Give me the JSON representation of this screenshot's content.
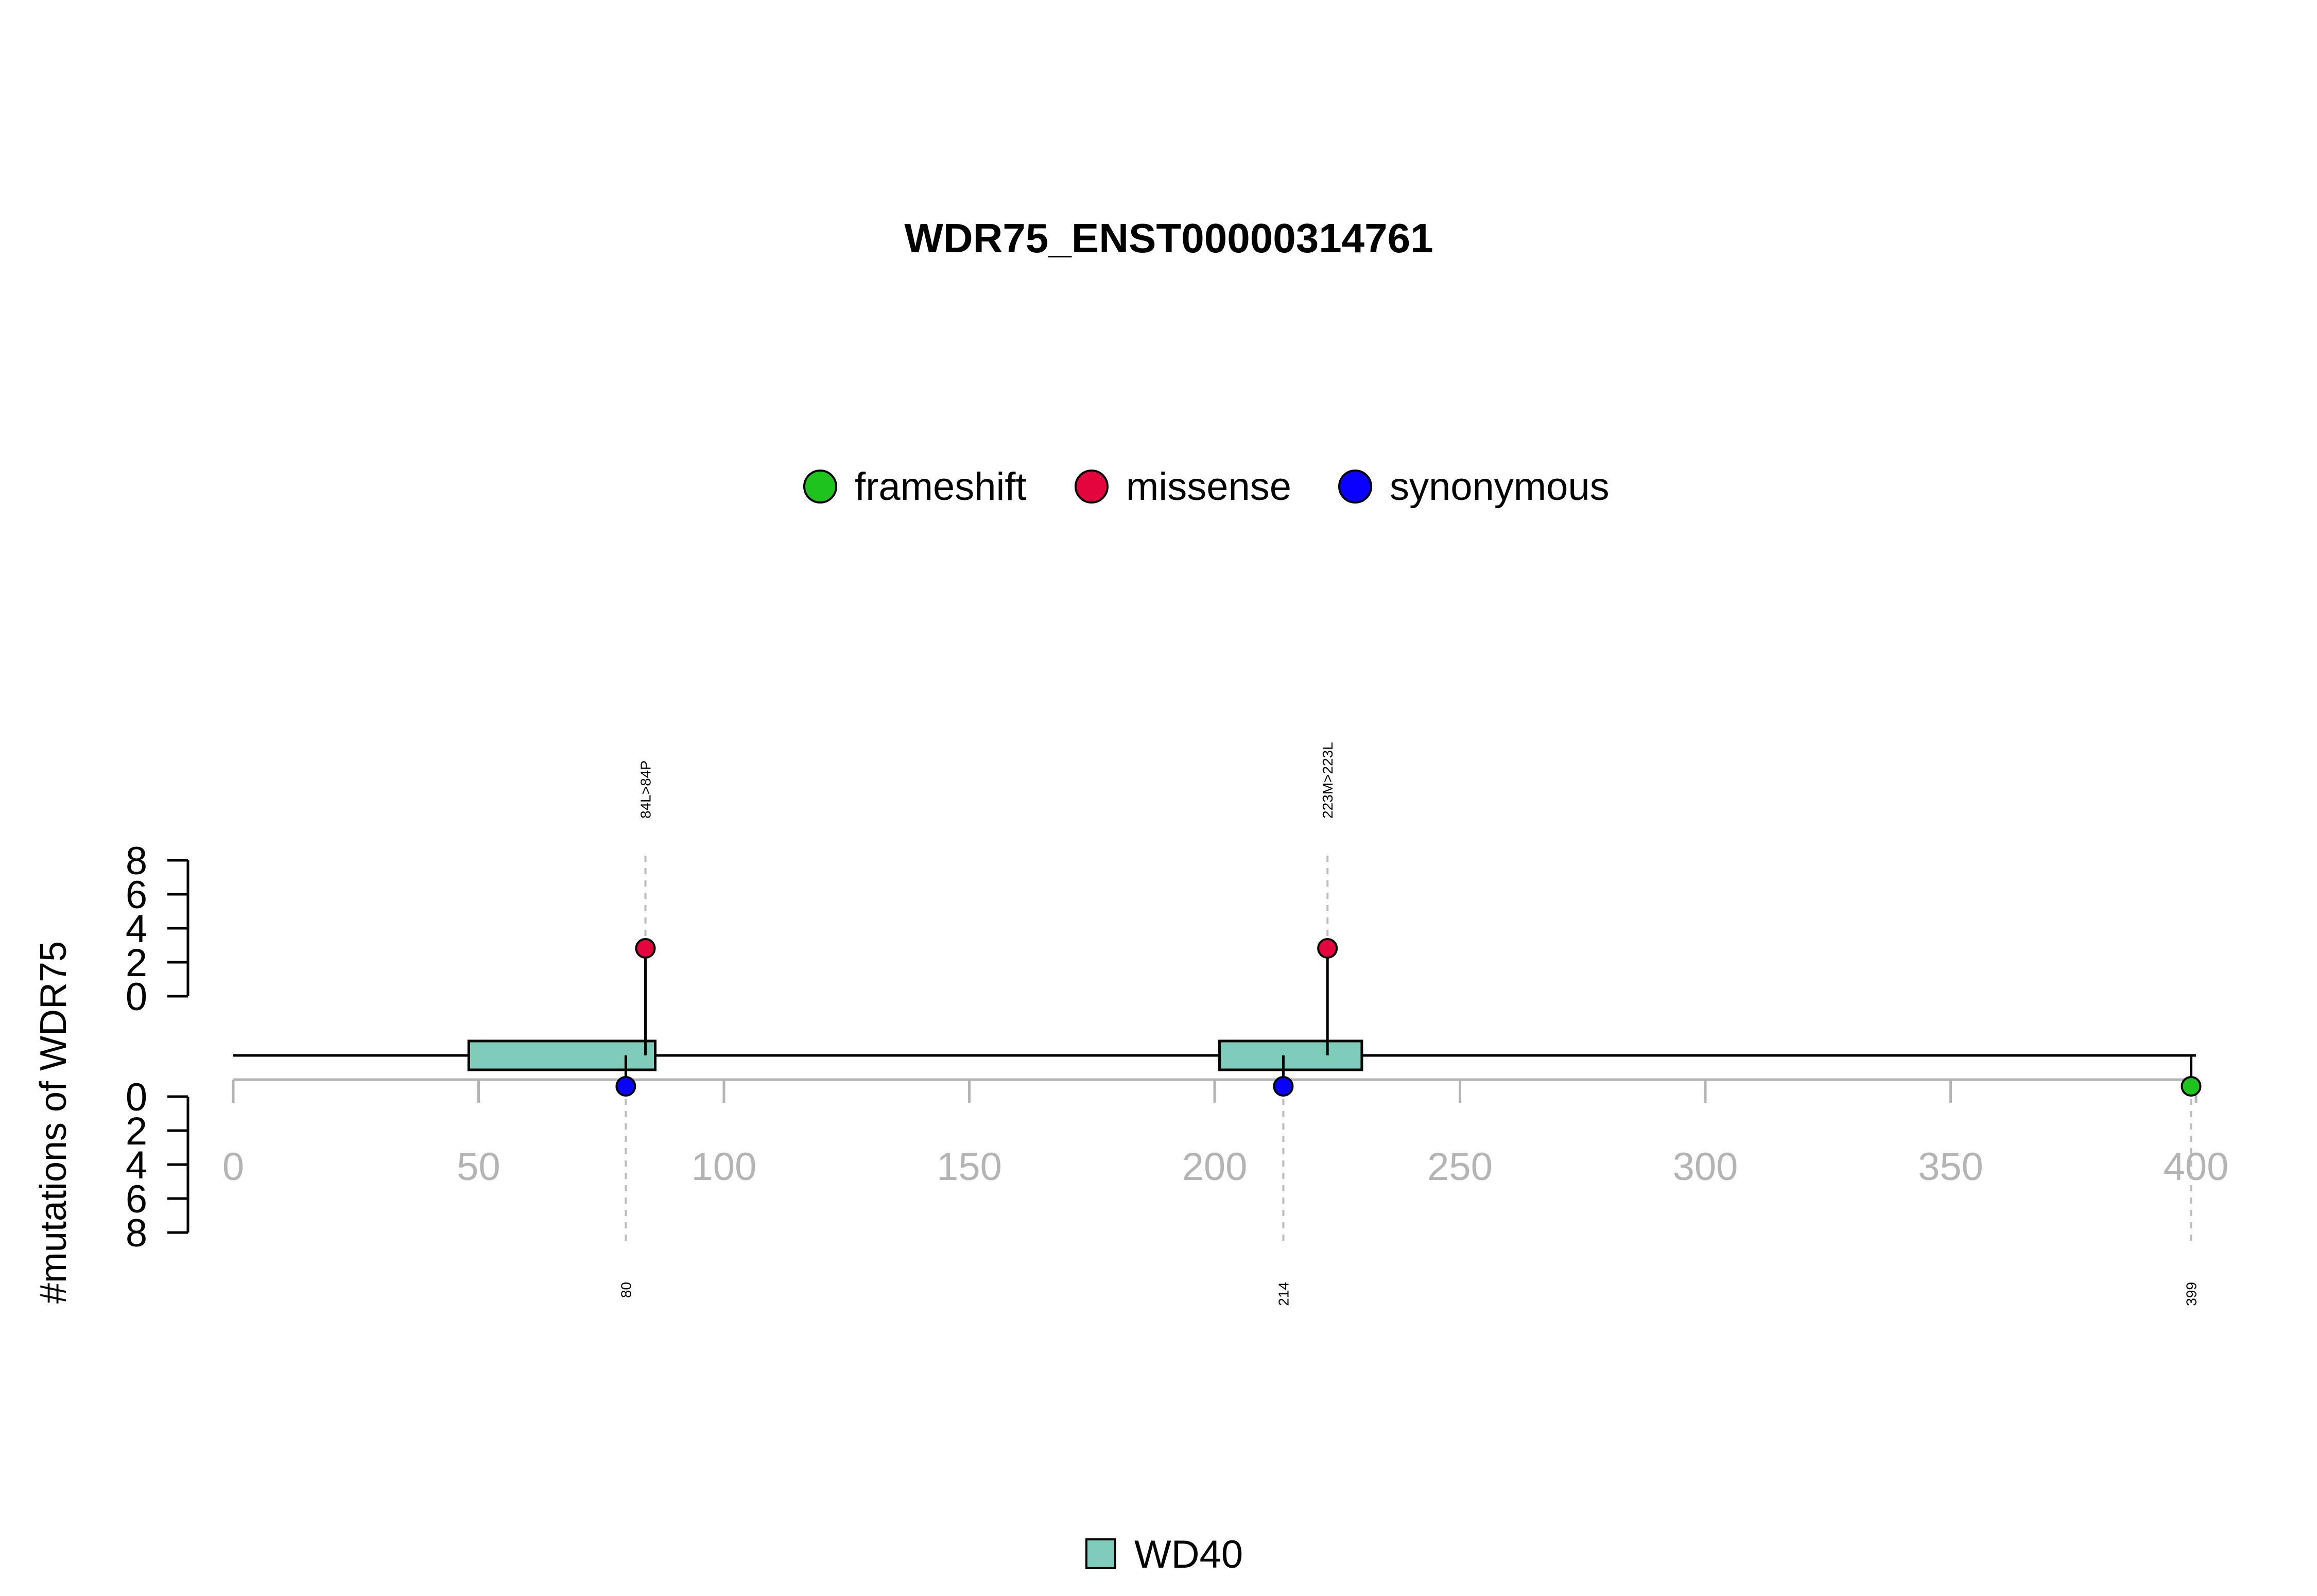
{
  "chart_data": {
    "type": "lollipop",
    "title": "WDR75_ENST00000314761",
    "ylabel": "#mutations of WDR75",
    "xlim": [
      0,
      400
    ],
    "x_ticks": [
      0,
      50,
      100,
      150,
      200,
      250,
      300,
      350,
      400
    ],
    "y_ticks_top": [
      0,
      2,
      4,
      6,
      8
    ],
    "y_ticks_bottom": [
      0,
      2,
      4,
      6,
      8
    ],
    "mutation_legend": [
      {
        "name": "frameshift",
        "color": "#1ec31e"
      },
      {
        "name": "missense",
        "color": "#e4053e"
      },
      {
        "name": "synonymous",
        "color": "#0a00ff"
      }
    ],
    "domain_legend": [
      {
        "name": "WD40",
        "color": "#7fccba"
      }
    ],
    "protein_length": 400,
    "domains": [
      {
        "name": "WD40",
        "start": 48,
        "end": 86
      },
      {
        "name": "WD40",
        "start": 201,
        "end": 230
      }
    ],
    "mutations_top": [
      {
        "position": 84,
        "count": 1,
        "type": "missense",
        "label": "84L>84P"
      },
      {
        "position": 223,
        "count": 1,
        "type": "missense",
        "label": "223M>223L"
      }
    ],
    "mutations_bottom": [
      {
        "position": 80,
        "count": 1,
        "type": "synonymous",
        "label": "80"
      },
      {
        "position": 214,
        "count": 1,
        "type": "synonymous",
        "label": "214"
      },
      {
        "position": 399,
        "count": 1,
        "type": "frameshift",
        "label": "399"
      }
    ]
  }
}
